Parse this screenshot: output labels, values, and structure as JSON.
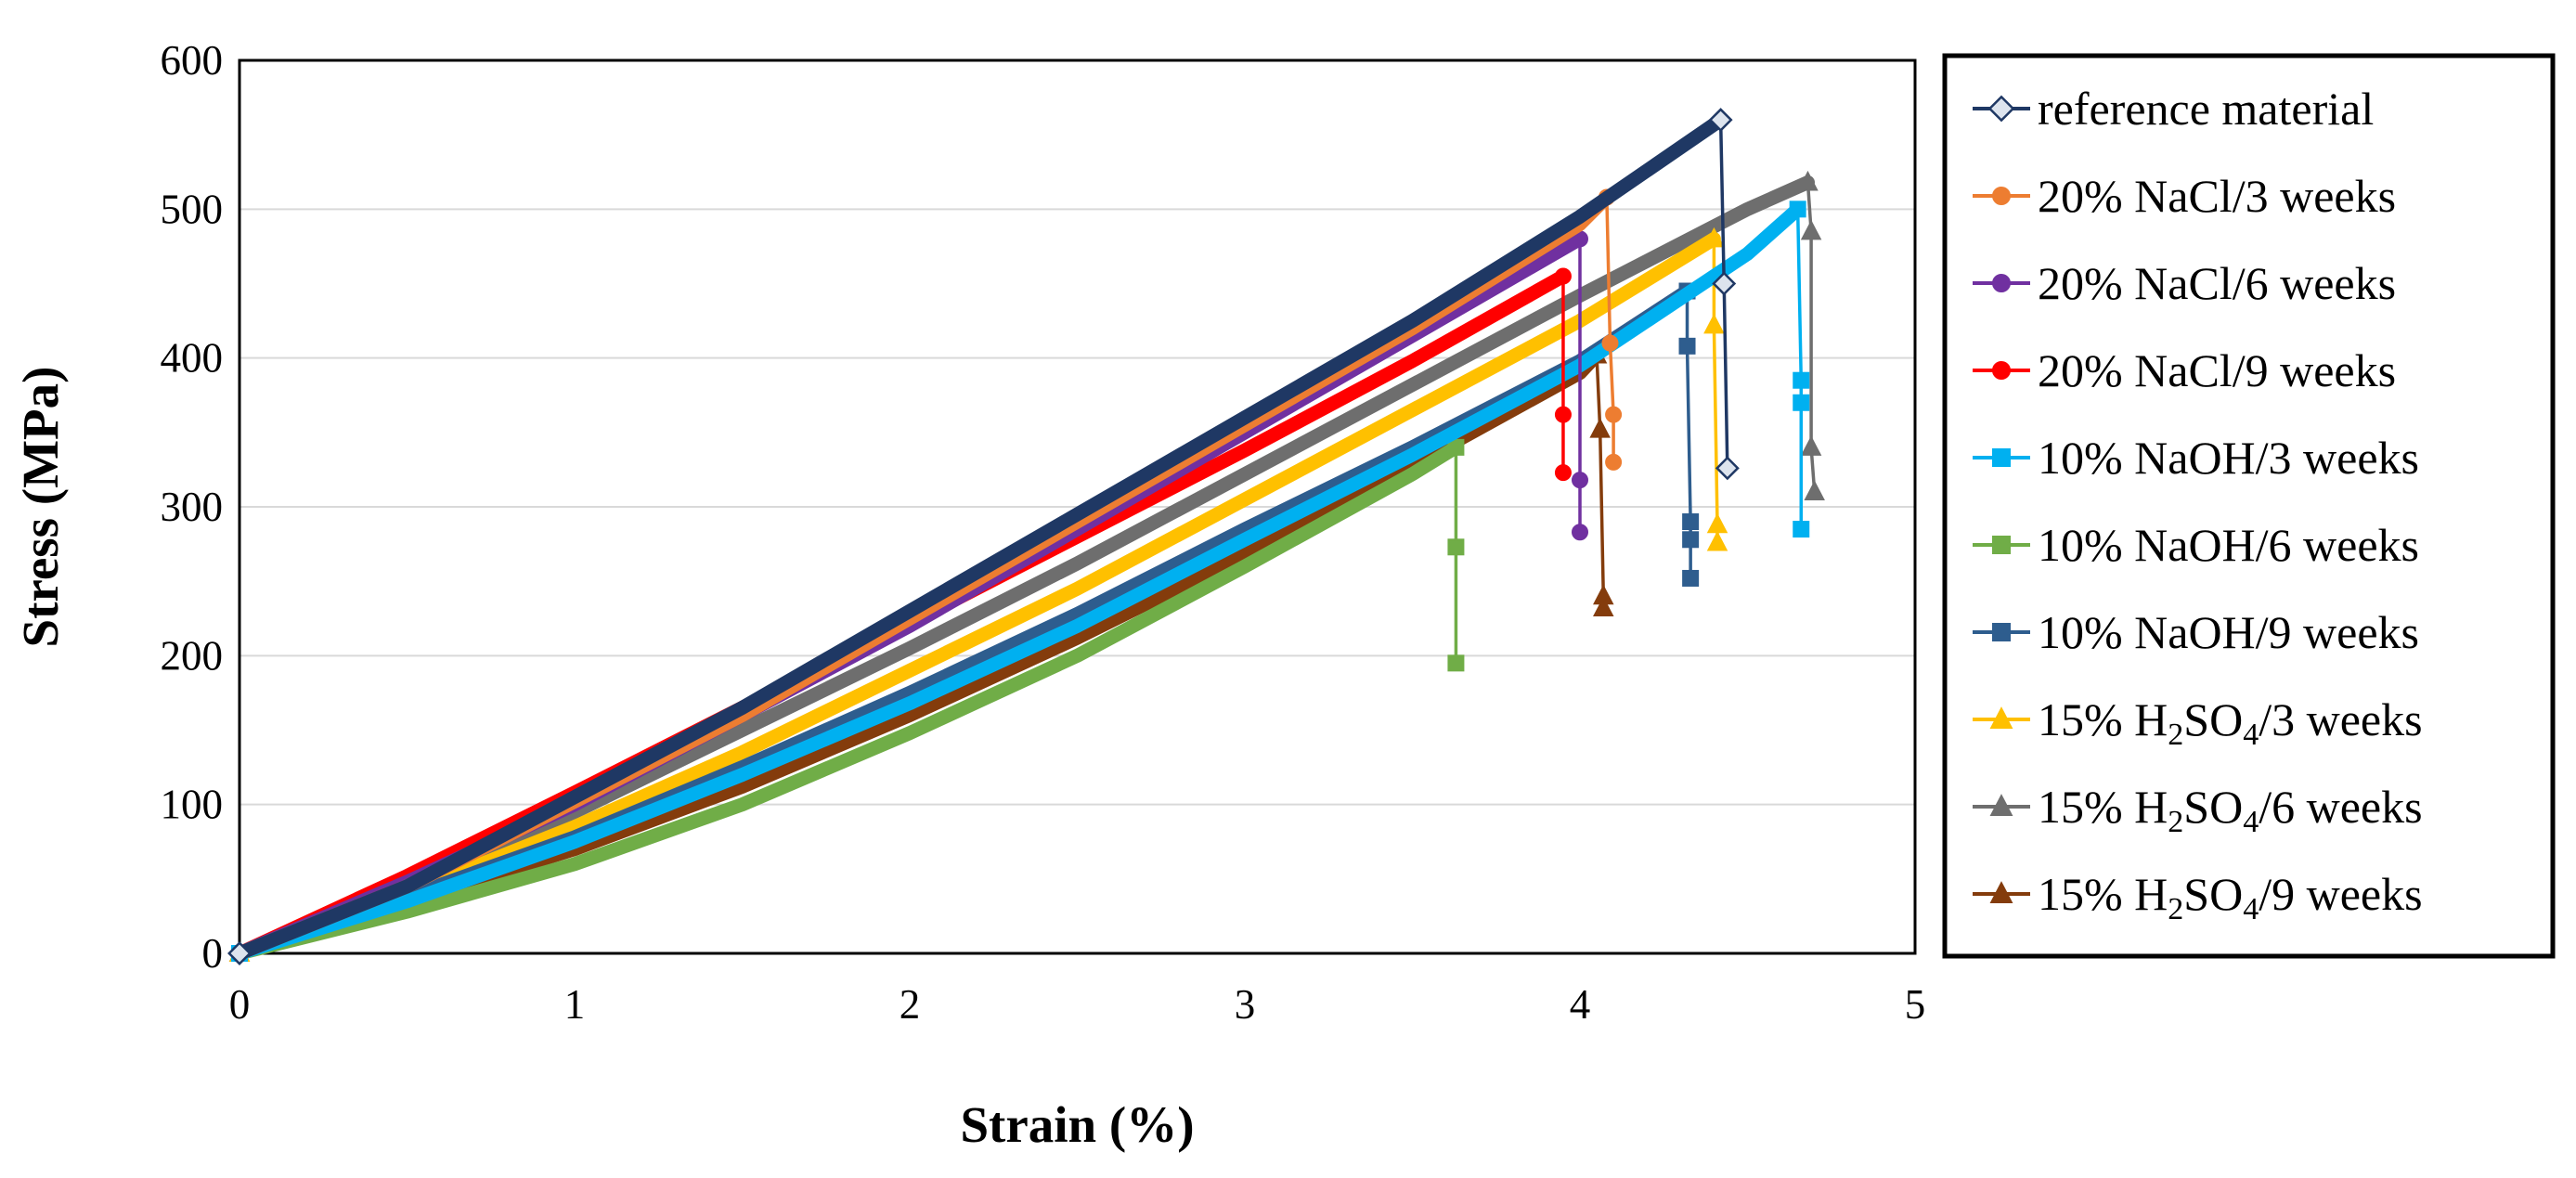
{
  "chart_data": {
    "type": "line",
    "title": "",
    "xlabel": "Strain (%)",
    "ylabel": "Stress (MPa)",
    "xlim": [
      0,
      5
    ],
    "ylim": [
      0,
      600
    ],
    "xticks": [
      "0",
      "1",
      "2",
      "3",
      "4",
      "5"
    ],
    "yticks": [
      "0",
      "100",
      "200",
      "300",
      "400",
      "500",
      "600"
    ],
    "grid": "horizontal",
    "legend_position": "right",
    "series": [
      {
        "name": "reference material",
        "legend_parts": [
          {
            "t": "reference material"
          }
        ],
        "color": "#1F3864",
        "marker": "diamond",
        "marker_fill": "#DDE4EE",
        "x": [
          0,
          0.5,
          1,
          1.5,
          2,
          2.5,
          3,
          3.5,
          4,
          4.42,
          4.43,
          4.44
        ],
        "y": [
          0,
          45,
          105,
          165,
          230,
          295,
          360,
          425,
          495,
          560,
          450,
          326
        ]
      },
      {
        "name": "20% NaCl/3 weeks",
        "legend_parts": [
          {
            "t": "20% NaCl/3 weeks"
          }
        ],
        "color": "#ED7D31",
        "marker": "circle",
        "marker_fill": "#ED7D31",
        "x": [
          0,
          0.5,
          1,
          1.5,
          2,
          2.5,
          3,
          3.5,
          4,
          4.08,
          4.09,
          4.1,
          4.1
        ],
        "y": [
          0,
          45,
          102,
          160,
          225,
          290,
          355,
          420,
          490,
          508,
          410,
          362,
          330
        ]
      },
      {
        "name": "20% NaCl/6 weeks",
        "legend_parts": [
          {
            "t": "20% NaCl/6 weeks"
          }
        ],
        "color": "#7030A0",
        "marker": "circle",
        "marker_fill": "#7030A0",
        "x": [
          0,
          0.5,
          1,
          1.5,
          2,
          2.5,
          3,
          3.5,
          4,
          4.0,
          4.0
        ],
        "y": [
          0,
          48,
          100,
          160,
          220,
          285,
          350,
          415,
          480,
          318,
          283
        ]
      },
      {
        "name": "20% NaCl/9 weeks",
        "legend_parts": [
          {
            "t": "20% NaCl/9 weeks"
          }
        ],
        "color": "#FF0000",
        "marker": "circle",
        "marker_fill": "#FF0000",
        "x": [
          0,
          0.5,
          1,
          1.5,
          2,
          2.5,
          3,
          3.5,
          3.95,
          3.95,
          3.95
        ],
        "y": [
          0,
          52,
          108,
          165,
          222,
          280,
          338,
          398,
          455,
          362,
          323
        ]
      },
      {
        "name": "10% NaOH/3 weeks",
        "legend_parts": [
          {
            "t": "10% NaOH/3 weeks"
          }
        ],
        "color": "#00B0F0",
        "marker": "square",
        "marker_fill": "#00B0F0",
        "x": [
          0,
          0.5,
          1,
          1.5,
          2,
          2.5,
          3,
          3.5,
          4,
          4.5,
          4.65,
          4.66,
          4.66,
          4.66
        ],
        "y": [
          0,
          35,
          75,
          120,
          168,
          220,
          278,
          335,
          395,
          470,
          500,
          385,
          370,
          285
        ]
      },
      {
        "name": "10% NaOH/6 weeks",
        "legend_parts": [
          {
            "t": "10% NaOH/6 weeks"
          }
        ],
        "color": "#70AD47",
        "marker": "square",
        "marker_fill": "#70AD47",
        "x": [
          0,
          0.5,
          1,
          1.5,
          2,
          2.5,
          3,
          3.5,
          3.63,
          3.63,
          3.63
        ],
        "y": [
          0,
          28,
          60,
          100,
          148,
          200,
          260,
          322,
          340,
          273,
          195
        ]
      },
      {
        "name": "10% NaOH/9 weeks",
        "legend_parts": [
          {
            "t": "10% NaOH/9 weeks"
          }
        ],
        "color": "#2E5D8E",
        "marker": "square",
        "marker_fill": "#2E5D8E",
        "x": [
          0,
          0.5,
          1,
          1.5,
          2,
          2.5,
          3,
          3.5,
          4,
          4.32,
          4.32,
          4.33,
          4.33,
          4.33
        ],
        "y": [
          0,
          38,
          78,
          125,
          175,
          228,
          285,
          340,
          398,
          445,
          408,
          290,
          278,
          252
        ]
      },
      {
        "name": "15% H2SO4/3 weeks",
        "legend_parts": [
          {
            "t": "15% H"
          },
          {
            "t": "2",
            "sub": true
          },
          {
            "t": "SO"
          },
          {
            "t": "4",
            "sub": true
          },
          {
            "t": "/3 weeks"
          }
        ],
        "color": "#FFC000",
        "marker": "triangle",
        "marker_fill": "#FFC000",
        "x": [
          0,
          0.5,
          1,
          1.5,
          2,
          2.5,
          3,
          3.5,
          4,
          4.4,
          4.4,
          4.41,
          4.41
        ],
        "y": [
          0,
          40,
          85,
          135,
          190,
          245,
          305,
          365,
          425,
          480,
          422,
          288,
          276
        ]
      },
      {
        "name": "15% H2SO4/6 weeks",
        "legend_parts": [
          {
            "t": "15% H"
          },
          {
            "t": "2",
            "sub": true
          },
          {
            "t": "SO"
          },
          {
            "t": "4",
            "sub": true
          },
          {
            "t": "/6 weeks"
          }
        ],
        "color": "#6E6E6E",
        "marker": "triangle",
        "marker_fill": "#6E6E6E",
        "x": [
          0,
          0.5,
          1,
          1.5,
          2,
          2.5,
          3,
          3.5,
          4,
          4.5,
          4.68,
          4.69,
          4.69,
          4.7
        ],
        "y": [
          0,
          45,
          95,
          150,
          205,
          262,
          322,
          382,
          442,
          500,
          518,
          485,
          340,
          310
        ]
      },
      {
        "name": "15% H2SO4/9 weeks",
        "legend_parts": [
          {
            "t": "15% H"
          },
          {
            "t": "2",
            "sub": true
          },
          {
            "t": "SO"
          },
          {
            "t": "4",
            "sub": true
          },
          {
            "t": "/9 weeks"
          }
        ],
        "color": "#843C0C",
        "marker": "triangle",
        "marker_fill": "#843C0C",
        "x": [
          0,
          0.5,
          1,
          1.5,
          2,
          2.5,
          3,
          3.5,
          4,
          4.05,
          4.06,
          4.07,
          4.07
        ],
        "y": [
          0,
          35,
          70,
          112,
          160,
          212,
          268,
          328,
          390,
          402,
          352,
          240,
          232
        ]
      }
    ]
  }
}
